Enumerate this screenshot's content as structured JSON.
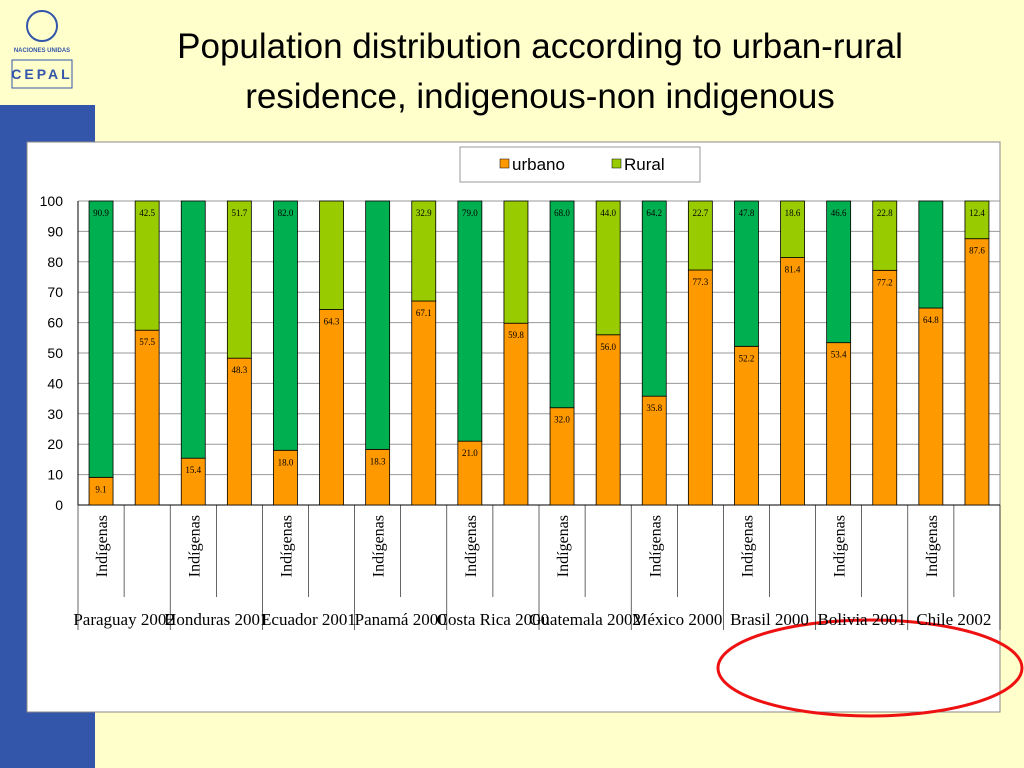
{
  "logo": {
    "org": "NACIONES UNIDAS",
    "name": "CEPAL"
  },
  "chart_data": {
    "type": "stacked_bar",
    "title": "Population distribution according to urban-rural residence, indigenous-non indigenous",
    "categories": [
      "Indígenas",
      null,
      "Indígenas",
      null,
      "Indígenas",
      null,
      "Indígenas",
      null,
      "Indígenas",
      null,
      "Indígenas",
      null,
      "Indígenas",
      null,
      "Indígenas",
      null,
      "Indígenas",
      null,
      "Indígenas",
      null
    ],
    "groups": [
      "Paraguay 2002",
      "Honduras 2001",
      "Ecuador 2001",
      "Panamá 2000",
      "Costa Rica 2000",
      "Guatemala 2002",
      "México 2000",
      "Brasil 2000",
      "Bolivia 2001",
      "Chile 2002"
    ],
    "series": [
      {
        "name": "urbano",
        "color": "#ff9900",
        "values": [
          9.1,
          57.5,
          15.4,
          48.3,
          18.0,
          64.3,
          18.3,
          67.1,
          21.0,
          59.8,
          32.0,
          56.0,
          35.8,
          77.3,
          52.2,
          81.4,
          53.4,
          77.2,
          64.8,
          87.6
        ],
        "value_labels": [
          "9.1",
          "57.5",
          "15.4",
          "48.3",
          "18.0",
          "64.3",
          "18.3",
          "67.1",
          "21.0",
          "59.8",
          "32.0",
          "56.0",
          "35.8",
          "77.3",
          "52.2",
          "81.4",
          "53.4",
          "77.2",
          "64.8",
          "87.6"
        ]
      },
      {
        "name": "Rural",
        "color": "#99cc00",
        "colors": [
          "#00b050",
          "#99cc00",
          "#00b050",
          "#99cc00",
          "#00b050",
          "#99cc00",
          "#00b050",
          "#99cc00",
          "#00b050",
          "#99cc00",
          "#00b050",
          "#99cc00",
          "#00b050",
          "#99cc00",
          "#00b050",
          "#99cc00",
          "#00b050",
          "#99cc00",
          "#00b050",
          "#99cc00"
        ],
        "values": [
          90.9,
          42.5,
          84.6,
          51.7,
          82.0,
          35.7,
          81.7,
          32.9,
          79.0,
          40.2,
          68.0,
          44.0,
          64.2,
          22.7,
          47.8,
          18.6,
          46.6,
          22.8,
          35.2,
          12.4
        ],
        "value_labels": [
          "90.9",
          "42.5",
          null,
          "51.7",
          "82.0",
          null,
          null,
          "32.9",
          "79.0",
          null,
          "68.0",
          "44.0",
          "64.2",
          "22.7",
          "47.8",
          "18.6",
          "46.6",
          "22.8",
          null,
          "12.4"
        ]
      }
    ],
    "ylim": [
      0,
      100
    ],
    "yticks": [
      0,
      10,
      20,
      30,
      40,
      50,
      60,
      70,
      80,
      90,
      100
    ],
    "grid": true,
    "legend": "top"
  }
}
